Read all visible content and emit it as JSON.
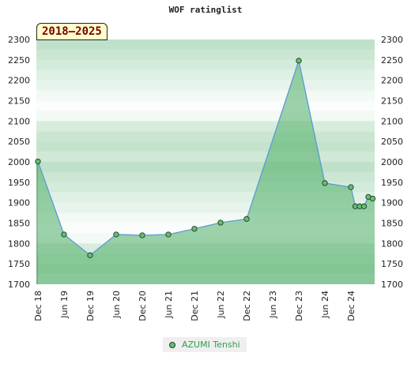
{
  "chart_data": {
    "type": "area",
    "title": "WOF ratinglist",
    "annotation": "2018–2025",
    "ylim": [
      1700,
      2300
    ],
    "yticks": [
      1700,
      1750,
      1800,
      1850,
      1900,
      1950,
      2000,
      2050,
      2100,
      2150,
      2200,
      2250,
      2300
    ],
    "xticks": [
      "Dec 18",
      "Jun 19",
      "Dec 19",
      "Jun 20",
      "Dec 20",
      "Jun 21",
      "Dec 21",
      "Jun 22",
      "Dec 22",
      "Jun 23",
      "Dec 23",
      "Jun 24",
      "Dec 24"
    ],
    "legend_position": "bottom",
    "series": [
      {
        "name": "AZUMI Tenshi",
        "color": "#66bb77",
        "points": [
          {
            "x": "2018-12",
            "y": 2001
          },
          {
            "x": "2019-06",
            "y": 1822
          },
          {
            "x": "2019-12",
            "y": 1771
          },
          {
            "x": "2020-06",
            "y": 1822
          },
          {
            "x": "2020-12",
            "y": 1820
          },
          {
            "x": "2021-06",
            "y": 1822
          },
          {
            "x": "2021-12",
            "y": 1836
          },
          {
            "x": "2022-06",
            "y": 1851
          },
          {
            "x": "2022-12",
            "y": 1860
          },
          {
            "x": "2023-12",
            "y": 2248
          },
          {
            "x": "2024-06",
            "y": 1948
          },
          {
            "x": "2024-12",
            "y": 1938
          },
          {
            "x": "2025-01",
            "y": 1891
          },
          {
            "x": "2025-02",
            "y": 1891
          },
          {
            "x": "2025-03",
            "y": 1891
          },
          {
            "x": "2025-04",
            "y": 1914
          },
          {
            "x": "2025-05",
            "y": 1910
          }
        ]
      }
    ]
  }
}
